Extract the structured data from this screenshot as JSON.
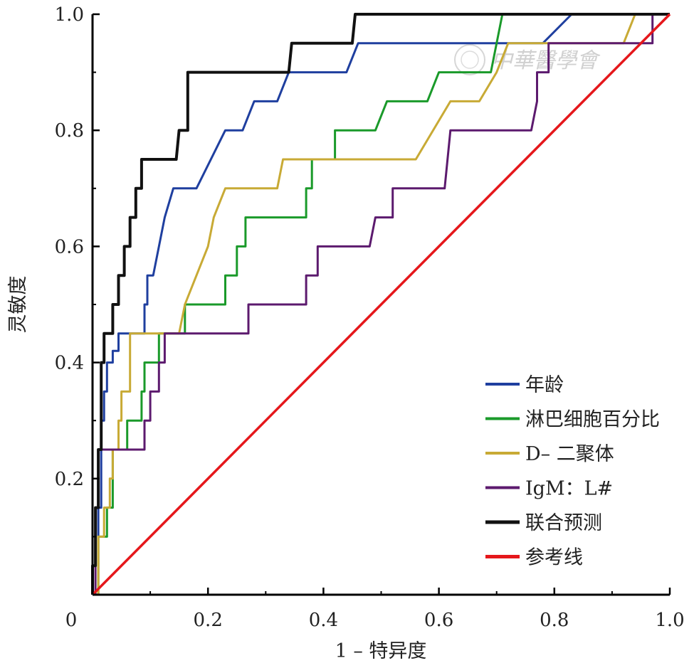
{
  "chart_data": {
    "type": "line",
    "xlabel": "1 – 特异度",
    "ylabel": "灵敏度",
    "xlim": [
      0,
      1
    ],
    "ylim": [
      0,
      1
    ],
    "x_ticks": [
      "0",
      "0.2",
      "0.4",
      "0.6",
      "0.8",
      "1.0"
    ],
    "y_ticks": [
      "0.2",
      "0.4",
      "0.6",
      "0.8",
      "1.0"
    ],
    "grid": false,
    "legend_position": "bottom-right",
    "watermark": "中華醫學會",
    "series": [
      {
        "name": "年龄",
        "color": "#1f3f9f",
        "points": [
          [
            0,
            0
          ],
          [
            0.01,
            0
          ],
          [
            0.01,
            0.15
          ],
          [
            0.015,
            0.15
          ],
          [
            0.015,
            0.3
          ],
          [
            0.02,
            0.3
          ],
          [
            0.02,
            0.35
          ],
          [
            0.025,
            0.35
          ],
          [
            0.025,
            0.4
          ],
          [
            0.035,
            0.4
          ],
          [
            0.035,
            0.42
          ],
          [
            0.045,
            0.42
          ],
          [
            0.045,
            0.45
          ],
          [
            0.09,
            0.45
          ],
          [
            0.09,
            0.5
          ],
          [
            0.095,
            0.5
          ],
          [
            0.095,
            0.55
          ],
          [
            0.105,
            0.55
          ],
          [
            0.125,
            0.65
          ],
          [
            0.14,
            0.7
          ],
          [
            0.18,
            0.7
          ],
          [
            0.23,
            0.8
          ],
          [
            0.26,
            0.8
          ],
          [
            0.28,
            0.85
          ],
          [
            0.32,
            0.85
          ],
          [
            0.34,
            0.9
          ],
          [
            0.44,
            0.9
          ],
          [
            0.46,
            0.95
          ],
          [
            0.78,
            0.95
          ],
          [
            0.83,
            1.0
          ],
          [
            1.0,
            1.0
          ]
        ]
      },
      {
        "name": "淋巴细胞百分比",
        "color": "#1a9a2a",
        "points": [
          [
            0,
            0
          ],
          [
            0.01,
            0
          ],
          [
            0.01,
            0.1
          ],
          [
            0.025,
            0.1
          ],
          [
            0.025,
            0.15
          ],
          [
            0.035,
            0.15
          ],
          [
            0.035,
            0.25
          ],
          [
            0.06,
            0.25
          ],
          [
            0.06,
            0.3
          ],
          [
            0.085,
            0.3
          ],
          [
            0.085,
            0.35
          ],
          [
            0.09,
            0.35
          ],
          [
            0.09,
            0.4
          ],
          [
            0.115,
            0.4
          ],
          [
            0.115,
            0.45
          ],
          [
            0.16,
            0.45
          ],
          [
            0.16,
            0.5
          ],
          [
            0.23,
            0.5
          ],
          [
            0.23,
            0.55
          ],
          [
            0.25,
            0.55
          ],
          [
            0.25,
            0.6
          ],
          [
            0.265,
            0.6
          ],
          [
            0.265,
            0.65
          ],
          [
            0.37,
            0.65
          ],
          [
            0.37,
            0.7
          ],
          [
            0.38,
            0.7
          ],
          [
            0.38,
            0.75
          ],
          [
            0.42,
            0.75
          ],
          [
            0.42,
            0.8
          ],
          [
            0.49,
            0.8
          ],
          [
            0.51,
            0.85
          ],
          [
            0.58,
            0.85
          ],
          [
            0.6,
            0.9
          ],
          [
            0.69,
            0.9
          ],
          [
            0.71,
            1.0
          ],
          [
            1.0,
            1.0
          ]
        ]
      },
      {
        "name": "D– 二聚体",
        "color": "#c8aa35",
        "points": [
          [
            0,
            0
          ],
          [
            0.01,
            0
          ],
          [
            0.01,
            0.1
          ],
          [
            0.02,
            0.1
          ],
          [
            0.02,
            0.15
          ],
          [
            0.03,
            0.15
          ],
          [
            0.03,
            0.2
          ],
          [
            0.035,
            0.2
          ],
          [
            0.035,
            0.25
          ],
          [
            0.045,
            0.25
          ],
          [
            0.045,
            0.3
          ],
          [
            0.05,
            0.3
          ],
          [
            0.05,
            0.35
          ],
          [
            0.065,
            0.35
          ],
          [
            0.065,
            0.45
          ],
          [
            0.15,
            0.45
          ],
          [
            0.16,
            0.5
          ],
          [
            0.18,
            0.55
          ],
          [
            0.2,
            0.6
          ],
          [
            0.21,
            0.65
          ],
          [
            0.23,
            0.7
          ],
          [
            0.32,
            0.7
          ],
          [
            0.33,
            0.75
          ],
          [
            0.45,
            0.75
          ],
          [
            0.56,
            0.75
          ],
          [
            0.62,
            0.85
          ],
          [
            0.67,
            0.85
          ],
          [
            0.7,
            0.9
          ],
          [
            0.72,
            0.95
          ],
          [
            0.92,
            0.95
          ],
          [
            0.94,
            1.0
          ],
          [
            1.0,
            1.0
          ]
        ]
      },
      {
        "name": "IgM：L#",
        "color": "#5c1a6e",
        "points": [
          [
            0,
            0
          ],
          [
            0.005,
            0
          ],
          [
            0.005,
            0.15
          ],
          [
            0.01,
            0.15
          ],
          [
            0.01,
            0.25
          ],
          [
            0.09,
            0.25
          ],
          [
            0.09,
            0.3
          ],
          [
            0.1,
            0.3
          ],
          [
            0.1,
            0.35
          ],
          [
            0.115,
            0.35
          ],
          [
            0.115,
            0.4
          ],
          [
            0.125,
            0.4
          ],
          [
            0.125,
            0.45
          ],
          [
            0.27,
            0.45
          ],
          [
            0.27,
            0.5
          ],
          [
            0.37,
            0.5
          ],
          [
            0.37,
            0.55
          ],
          [
            0.39,
            0.55
          ],
          [
            0.39,
            0.6
          ],
          [
            0.48,
            0.6
          ],
          [
            0.49,
            0.65
          ],
          [
            0.52,
            0.65
          ],
          [
            0.52,
            0.7
          ],
          [
            0.61,
            0.7
          ],
          [
            0.62,
            0.8
          ],
          [
            0.76,
            0.8
          ],
          [
            0.77,
            0.85
          ],
          [
            0.77,
            0.9
          ],
          [
            0.79,
            0.9
          ],
          [
            0.79,
            0.95
          ],
          [
            0.97,
            0.95
          ],
          [
            0.97,
            1.0
          ],
          [
            1.0,
            1.0
          ]
        ]
      },
      {
        "name": "联合预测",
        "color": "#111111",
        "points": [
          [
            0,
            0
          ],
          [
            0,
            0.05
          ],
          [
            0.005,
            0.05
          ],
          [
            0.005,
            0.15
          ],
          [
            0.01,
            0.15
          ],
          [
            0.01,
            0.25
          ],
          [
            0.015,
            0.25
          ],
          [
            0.015,
            0.4
          ],
          [
            0.02,
            0.4
          ],
          [
            0.02,
            0.45
          ],
          [
            0.035,
            0.45
          ],
          [
            0.035,
            0.5
          ],
          [
            0.045,
            0.5
          ],
          [
            0.045,
            0.55
          ],
          [
            0.055,
            0.55
          ],
          [
            0.055,
            0.6
          ],
          [
            0.065,
            0.6
          ],
          [
            0.065,
            0.65
          ],
          [
            0.075,
            0.65
          ],
          [
            0.075,
            0.7
          ],
          [
            0.085,
            0.7
          ],
          [
            0.085,
            0.75
          ],
          [
            0.145,
            0.75
          ],
          [
            0.15,
            0.8
          ],
          [
            0.165,
            0.8
          ],
          [
            0.165,
            0.9
          ],
          [
            0.34,
            0.9
          ],
          [
            0.345,
            0.95
          ],
          [
            0.45,
            0.95
          ],
          [
            0.455,
            1.0
          ],
          [
            1.0,
            1.0
          ]
        ]
      },
      {
        "name": "参考线",
        "color": "#e5171b",
        "points": [
          [
            0,
            0
          ],
          [
            1,
            1
          ]
        ]
      }
    ]
  }
}
